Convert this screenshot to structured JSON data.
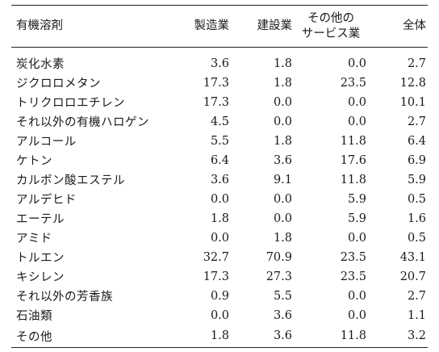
{
  "table": {
    "headers": {
      "name": "有機溶剤",
      "manufacturing": "製造業",
      "construction": "建設業",
      "other_line1": "その他の",
      "other_line2": "サービス業",
      "total": "全体"
    },
    "rows": [
      {
        "name": "炭化水素",
        "manufacturing": "3.6",
        "construction": "1.8",
        "other": "0.0",
        "total": "2.7"
      },
      {
        "name": "ジクロロメタン",
        "manufacturing": "17.3",
        "construction": "1.8",
        "other": "23.5",
        "total": "12.8"
      },
      {
        "name": "トリクロロエチレン",
        "manufacturing": "17.3",
        "construction": "0.0",
        "other": "0.0",
        "total": "10.1"
      },
      {
        "name": "それ以外の有機ハロゲン",
        "manufacturing": "4.5",
        "construction": "0.0",
        "other": "0.0",
        "total": "2.7"
      },
      {
        "name": "アルコール",
        "manufacturing": "5.5",
        "construction": "1.8",
        "other": "11.8",
        "total": "6.4"
      },
      {
        "name": "ケトン",
        "manufacturing": "6.4",
        "construction": "3.6",
        "other": "17.6",
        "total": "6.9"
      },
      {
        "name": "カルボン酸エステル",
        "manufacturing": "3.6",
        "construction": "9.1",
        "other": "11.8",
        "total": "5.9"
      },
      {
        "name": "アルデヒド",
        "manufacturing": "0.0",
        "construction": "0.0",
        "other": "5.9",
        "total": "0.5"
      },
      {
        "name": "エーテル",
        "manufacturing": "1.8",
        "construction": "0.0",
        "other": "5.9",
        "total": "1.6"
      },
      {
        "name": "アミド",
        "manufacturing": "0.0",
        "construction": "1.8",
        "other": "0.0",
        "total": "0.5"
      },
      {
        "name": "トルエン",
        "manufacturing": "32.7",
        "construction": "70.9",
        "other": "23.5",
        "total": "43.1"
      },
      {
        "name": "キシレン",
        "manufacturing": "17.3",
        "construction": "27.3",
        "other": "23.5",
        "total": "20.7"
      },
      {
        "name": "それ以外の芳香族",
        "manufacturing": "0.9",
        "construction": "5.5",
        "other": "0.0",
        "total": "2.7"
      },
      {
        "name": "石油類",
        "manufacturing": "0.0",
        "construction": "3.6",
        "other": "0.0",
        "total": "1.1"
      },
      {
        "name": "その他",
        "manufacturing": "1.8",
        "construction": "3.6",
        "other": "11.8",
        "total": "3.2"
      }
    ]
  }
}
